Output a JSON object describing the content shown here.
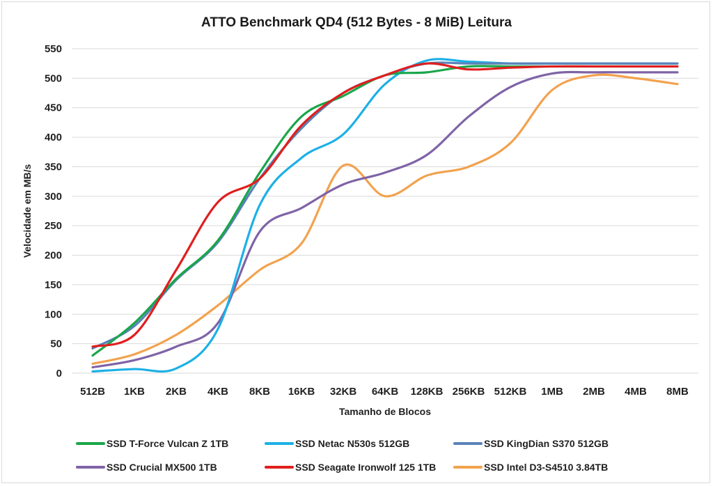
{
  "chart_data": {
    "type": "line",
    "title": "ATTO Benchmark QD4 (512 Bytes - 8 MiB) Leitura",
    "xlabel": "Tamanho de Blocos",
    "ylabel": "Velocidade em MB/s",
    "ylim": [
      0,
      550
    ],
    "yticks": [
      "0",
      "50",
      "100",
      "150",
      "200",
      "250",
      "300",
      "350",
      "400",
      "450",
      "500",
      "550"
    ],
    "categories": [
      "512B",
      "1KB",
      "2KB",
      "4KB",
      "8KB",
      "16KB",
      "32KB",
      "64KB",
      "128KB",
      "256KB",
      "512KB",
      "1MB",
      "2MB",
      "4MB",
      "8MB"
    ],
    "grid": true,
    "legend_position": "bottom",
    "series": [
      {
        "name": "SSD T-Force Vulcan Z 1TB",
        "color": "#1aa64a",
        "values": [
          30,
          85,
          160,
          225,
          340,
          435,
          470,
          505,
          510,
          520,
          520,
          520,
          520,
          520,
          520
        ]
      },
      {
        "name": "SSD Netac N530s 512GB",
        "color": "#1cb0e6",
        "values": [
          3,
          7,
          8,
          75,
          285,
          365,
          405,
          490,
          530,
          528,
          525,
          525,
          525,
          525,
          525
        ]
      },
      {
        "name": "SSD KingDian S370 512GB",
        "color": "#5a82b8",
        "values": [
          42,
          80,
          158,
          222,
          330,
          415,
          475,
          505,
          525,
          525,
          525,
          525,
          525,
          525,
          525
        ]
      },
      {
        "name": "SSD Crucial MX500 1TB",
        "color": "#7f63a6",
        "values": [
          10,
          22,
          45,
          85,
          240,
          280,
          320,
          340,
          370,
          435,
          485,
          508,
          510,
          510,
          510
        ]
      },
      {
        "name": "SSD Seagate Ironwolf 125 1TB",
        "color": "#e01e1e",
        "values": [
          45,
          65,
          175,
          290,
          330,
          420,
          475,
          505,
          525,
          515,
          518,
          520,
          520,
          520,
          520
        ]
      },
      {
        "name": "SSD Intel D3-S4510 3.84TB",
        "color": "#f2a24e",
        "values": [
          16,
          32,
          65,
          115,
          175,
          220,
          352,
          300,
          335,
          350,
          390,
          480,
          505,
          500,
          490
        ]
      }
    ]
  }
}
